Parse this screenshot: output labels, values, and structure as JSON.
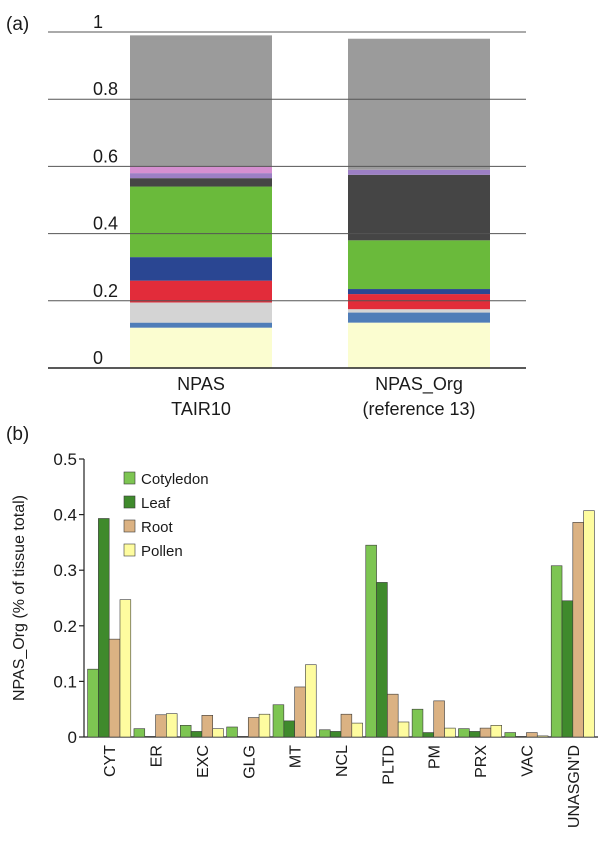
{
  "panels": {
    "a_label": "(a)",
    "b_label": "(b)"
  },
  "chart_data": [
    {
      "type": "bar",
      "stacked": true,
      "ylim": [
        0,
        1
      ],
      "yticks": [
        "0",
        "0.2",
        "0.4",
        "0.6",
        "0.8",
        "1"
      ],
      "grid": true,
      "categories": [
        [
          "NPAS",
          "TAIR10"
        ],
        [
          "NPAS_Org",
          "(reference 13)"
        ]
      ],
      "segments_bottom_to_top": [
        {
          "color": "#fbfdd0",
          "values": [
            0.12,
            0.135
          ]
        },
        {
          "color": "#4f7db8",
          "values": [
            0.015,
            0.03
          ]
        },
        {
          "color": "#d4d4d4",
          "values": [
            0.06,
            0.01
          ]
        },
        {
          "color": "#e22c3a",
          "values": [
            0.065,
            0.045
          ]
        },
        {
          "color": "#2a4692",
          "values": [
            0.07,
            0.015
          ]
        },
        {
          "color": "#6aba3b",
          "values": [
            0.21,
            0.145
          ]
        },
        {
          "color": "#454545",
          "values": [
            0.025,
            0.195
          ]
        },
        {
          "color": "#9c7fc4",
          "values": [
            0.015,
            0.015
          ]
        },
        {
          "color": "#d58fd0",
          "values": [
            0.02,
            0.0
          ]
        },
        {
          "color": "#9b9b9b",
          "values": [
            0.39,
            0.39
          ]
        }
      ]
    },
    {
      "type": "bar",
      "ylabel": "NPAS_Org (% of tissue total)",
      "ylim": [
        0,
        0.5
      ],
      "yticks": [
        "0",
        "0.1",
        "0.2",
        "0.3",
        "0.4",
        "0.5"
      ],
      "legend_position": "top-left",
      "categories": [
        "CYT",
        "ER",
        "EXC",
        "GLG",
        "MT",
        "NCL",
        "PLTD",
        "PM",
        "PRX",
        "VAC",
        "UNASGN'D"
      ],
      "series": [
        {
          "name": "Cotyledon",
          "color": "#7dc552",
          "values": [
            0.122,
            0.015,
            0.021,
            0.018,
            0.058,
            0.013,
            0.345,
            0.05,
            0.015,
            0.008,
            0.308
          ]
        },
        {
          "name": "Leaf",
          "color": "#3f8a2c",
          "values": [
            0.393,
            0.001,
            0.01,
            0.001,
            0.029,
            0.01,
            0.278,
            0.008,
            0.01,
            0.001,
            0.245
          ]
        },
        {
          "name": "Root",
          "color": "#dbb283",
          "values": [
            0.176,
            0.04,
            0.039,
            0.035,
            0.09,
            0.041,
            0.077,
            0.065,
            0.016,
            0.008,
            0.386
          ]
        },
        {
          "name": "Pollen",
          "color": "#fefc9f",
          "values": [
            0.247,
            0.042,
            0.015,
            0.041,
            0.13,
            0.025,
            0.027,
            0.016,
            0.021,
            0.002,
            0.407
          ]
        }
      ]
    }
  ]
}
